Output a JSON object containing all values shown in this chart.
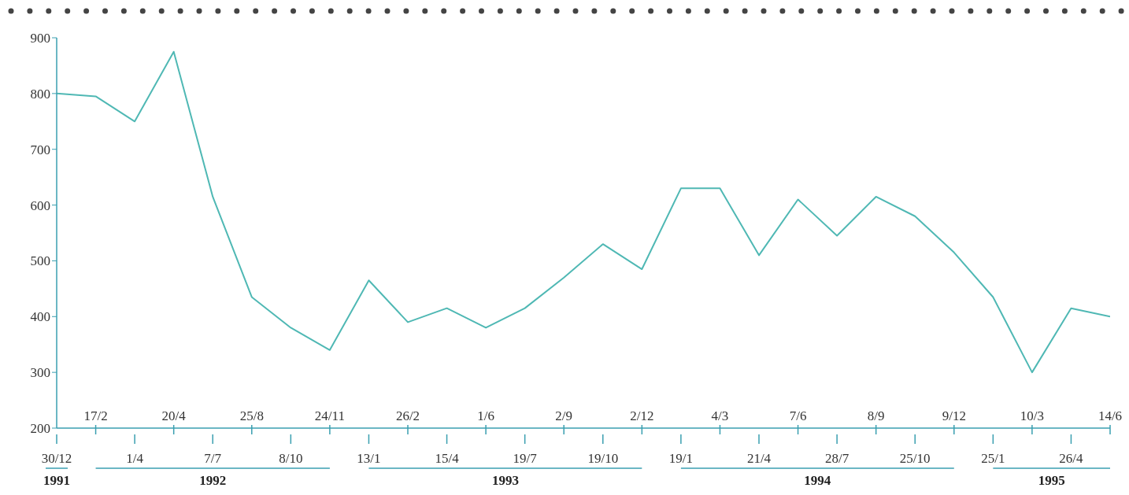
{
  "chart_data": {
    "type": "line",
    "categories": [
      "30/12",
      "17/2",
      "1/4",
      "20/4",
      "7/7",
      "25/8",
      "8/10",
      "24/11",
      "13/1",
      "26/2",
      "15/4",
      "1/6",
      "19/7",
      "2/9",
      "19/10",
      "2/12",
      "19/1",
      "4/3",
      "21/4",
      "7/6",
      "28/7",
      "8/9",
      "25/10",
      "9/12",
      "25/1",
      "10/3",
      "26/4",
      "14/6"
    ],
    "series": [
      {
        "color": "#4fb8b4",
        "values": [
          800,
          795,
          750,
          875,
          615,
          435,
          380,
          340,
          465,
          390,
          415,
          380,
          415,
          470,
          530,
          485,
          630,
          630,
          510,
          610,
          545,
          615,
          580,
          515,
          435,
          300,
          415,
          400
        ]
      }
    ],
    "ylim": [
      200,
      900
    ],
    "yticks": [
      200,
      300,
      400,
      500,
      600,
      700,
      800,
      900
    ],
    "marker": "none",
    "line_style": "solid",
    "annotations": [
      "1991",
      "1992",
      "1993",
      "1994",
      "1995"
    ]
  }
}
